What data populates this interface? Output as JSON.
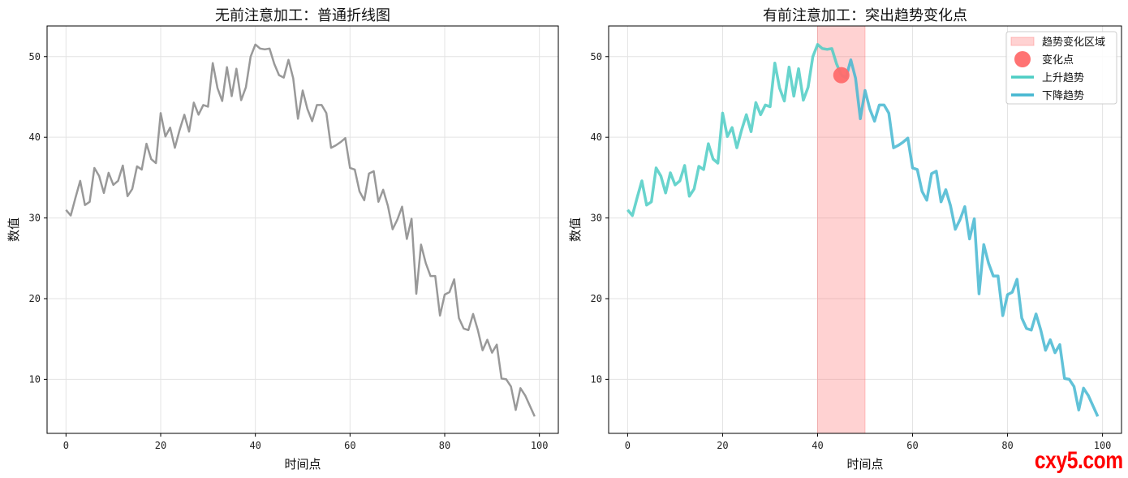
{
  "chart_data": [
    {
      "type": "line",
      "title": "无前注意加工：普通折线图",
      "xlabel": "时间点",
      "ylabel": "数值",
      "xlim": [
        -4,
        104
      ],
      "ylim": [
        3.3,
        53.8
      ],
      "xticks": [
        0,
        20,
        40,
        60,
        80,
        100
      ],
      "yticks": [
        10,
        20,
        30,
        40,
        50
      ],
      "grid": true,
      "colors": {
        "line": "#999999"
      },
      "series": [
        {
          "x": [
            0,
            1,
            2,
            3,
            4,
            5,
            6,
            7,
            8,
            9,
            10,
            11,
            12,
            13,
            14,
            15,
            16,
            17,
            18,
            19,
            20,
            21,
            22,
            23,
            24,
            25,
            26,
            27,
            28,
            29,
            30,
            31,
            32,
            33,
            34,
            35,
            36,
            37,
            38,
            39,
            40,
            41,
            42,
            43,
            44,
            45,
            46,
            47,
            48,
            49,
            50,
            51,
            52,
            53,
            54,
            55,
            56,
            57,
            58,
            59,
            60,
            61,
            62,
            63,
            64,
            65,
            66,
            67,
            68,
            69,
            70,
            71,
            72,
            73,
            74,
            75,
            76,
            77,
            78,
            79,
            80,
            81,
            82,
            83,
            84,
            85,
            86,
            87,
            88,
            89,
            90,
            91,
            92,
            93,
            94,
            95,
            96,
            97,
            98,
            99
          ],
          "values": [
            31.0,
            30.3,
            32.5,
            34.6,
            31.6,
            32.0,
            36.2,
            35.2,
            33.1,
            35.6,
            34.1,
            34.6,
            36.5,
            32.7,
            33.6,
            36.4,
            36.0,
            39.2,
            37.3,
            36.8,
            43.0,
            40.1,
            41.2,
            38.7,
            40.9,
            42.8,
            40.7,
            44.3,
            42.8,
            44.0,
            43.8,
            49.2,
            46.1,
            44.5,
            48.7,
            45.1,
            48.5,
            44.6,
            46.2,
            50.0,
            51.5,
            51.0,
            50.9,
            51.0,
            49.1,
            47.7,
            47.4,
            49.6,
            47.3,
            42.3,
            45.8,
            43.5,
            42.0,
            44.0,
            44.0,
            43.0,
            38.7,
            39.0,
            39.4,
            39.9,
            36.2,
            36.0,
            33.3,
            32.2,
            35.5,
            35.8,
            32.0,
            33.5,
            31.5,
            28.6,
            29.8,
            31.4,
            27.4,
            29.9,
            20.6,
            26.7,
            24.4,
            22.8,
            22.8,
            17.9,
            20.5,
            20.8,
            22.4,
            17.6,
            16.3,
            16.1,
            18.1,
            16.1,
            13.6,
            14.9,
            13.3,
            14.3,
            10.1,
            10.0,
            9.1,
            6.2,
            8.9,
            8.0,
            6.7,
            5.4
          ]
        }
      ]
    },
    {
      "type": "line",
      "title": "有前注意加工：突出趋势变化点",
      "xlabel": "时间点",
      "ylabel": "数值",
      "xlim": [
        -4,
        104
      ],
      "ylim": [
        3.3,
        53.8
      ],
      "xticks": [
        0,
        20,
        40,
        60,
        80,
        100
      ],
      "yticks": [
        10,
        20,
        30,
        40,
        50
      ],
      "grid": true,
      "legend": "top-right",
      "highlight_region": {
        "x": [
          40,
          50
        ],
        "label": "趋势变化区域",
        "color": "#ff6b6b"
      },
      "change_point": {
        "x": 45,
        "y": 47.7,
        "label": "变化点",
        "color": "#ff6b6b"
      },
      "series": [
        {
          "name": "上升趋势",
          "color": "#4ecdc4",
          "x_range": [
            0,
            45
          ]
        },
        {
          "name": "下降趋势",
          "color": "#45b7d1",
          "x_range": [
            45,
            99
          ]
        }
      ]
    }
  ],
  "watermark": "cxy5.com"
}
